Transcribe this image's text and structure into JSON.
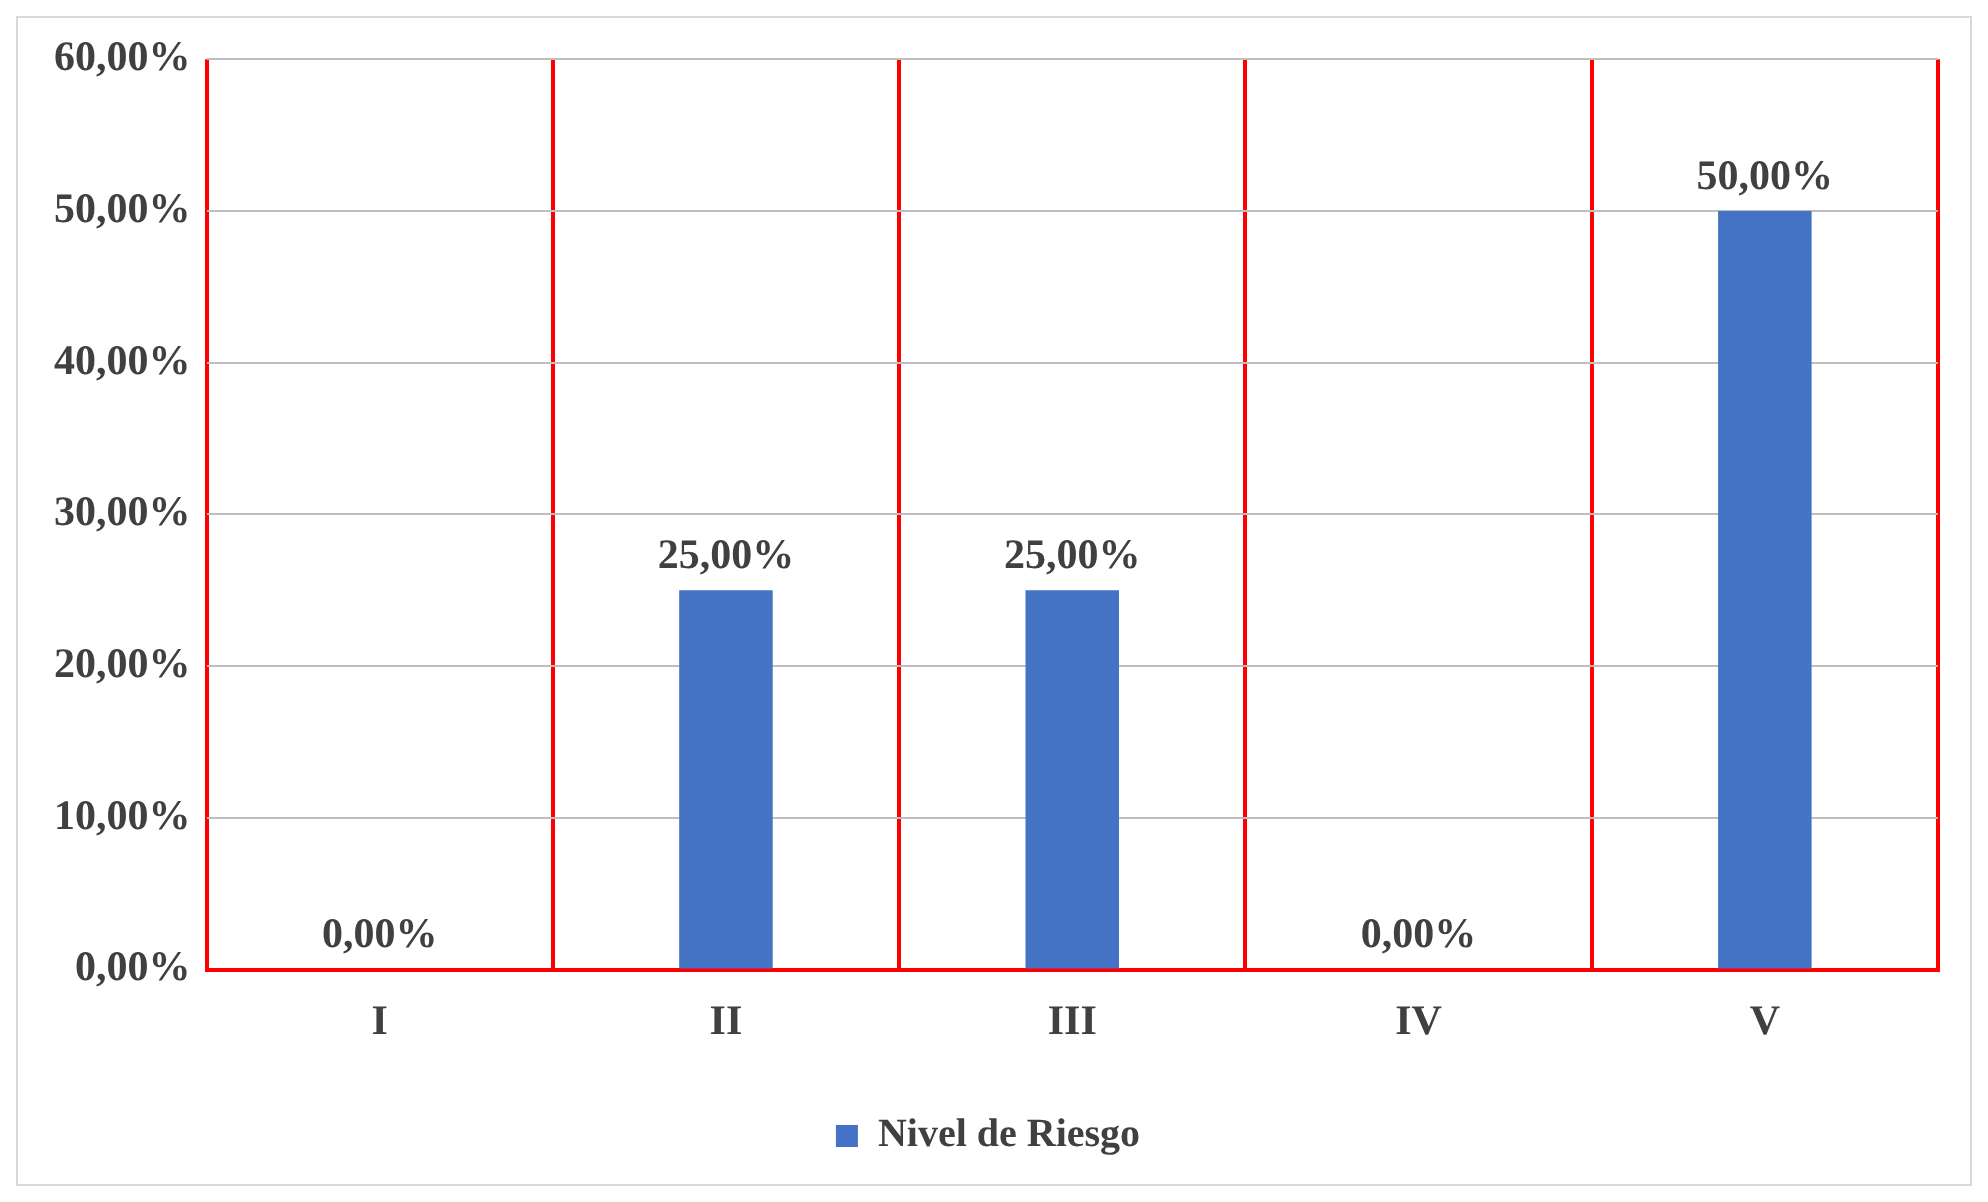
{
  "chart_data": {
    "type": "bar",
    "categories": [
      "I",
      "II",
      "III",
      "IV",
      "V"
    ],
    "series": [
      {
        "name": "Nivel de Riesgo",
        "color": "#4472c4",
        "values": [
          0,
          25,
          25,
          0,
          50
        ],
        "value_labels": [
          "0,00%",
          "25,00%",
          "25,00%",
          "0,00%",
          "50,00%"
        ]
      }
    ],
    "ylim": [
      0,
      60
    ],
    "yticks": [
      {
        "value": 0,
        "label": "0,00%"
      },
      {
        "value": 10,
        "label": "10,00%"
      },
      {
        "value": 20,
        "label": "20,00%"
      },
      {
        "value": 30,
        "label": "30,00%"
      },
      {
        "value": 40,
        "label": "40,00%"
      },
      {
        "value": 50,
        "label": "50,00%"
      },
      {
        "value": 60,
        "label": "60,00%"
      }
    ],
    "grid": true,
    "legend": "bottom"
  }
}
